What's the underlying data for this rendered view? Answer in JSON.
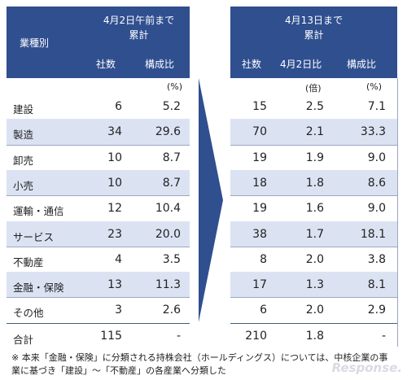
{
  "left": {
    "row_header": "業種別",
    "group_header": "4月2日午前まで\n累計",
    "col_count": "社数",
    "col_ratio": "構成比",
    "unit_ratio": "(%)"
  },
  "right": {
    "group_header": "4月13日まで\n累計",
    "col_count": "社数",
    "col_vs": "4月2日比",
    "col_ratio": "構成比",
    "unit_vs": "(倍)",
    "unit_ratio": "(%)"
  },
  "rows": [
    {
      "label": "建設",
      "l_count": "6",
      "l_ratio": "5.2",
      "r_count": "15",
      "r_vs": "2.5",
      "r_ratio": "7.1"
    },
    {
      "label": "製造",
      "l_count": "34",
      "l_ratio": "29.6",
      "r_count": "70",
      "r_vs": "2.1",
      "r_ratio": "33.3"
    },
    {
      "label": "卸売",
      "l_count": "10",
      "l_ratio": "8.7",
      "r_count": "19",
      "r_vs": "1.9",
      "r_ratio": "9.0"
    },
    {
      "label": "小売",
      "l_count": "10",
      "l_ratio": "8.7",
      "r_count": "18",
      "r_vs": "1.8",
      "r_ratio": "8.6"
    },
    {
      "label": "運輸・通信",
      "l_count": "12",
      "l_ratio": "10.4",
      "r_count": "19",
      "r_vs": "1.6",
      "r_ratio": "9.0"
    },
    {
      "label": "サービス",
      "l_count": "23",
      "l_ratio": "20.0",
      "r_count": "38",
      "r_vs": "1.7",
      "r_ratio": "18.1"
    },
    {
      "label": "不動産",
      "l_count": "4",
      "l_ratio": "3.5",
      "r_count": "8",
      "r_vs": "2.0",
      "r_ratio": "3.8"
    },
    {
      "label": "金融・保険",
      "l_count": "13",
      "l_ratio": "11.3",
      "r_count": "17",
      "r_vs": "1.3",
      "r_ratio": "8.1"
    },
    {
      "label": "その他",
      "l_count": "3",
      "l_ratio": "2.6",
      "r_count": "6",
      "r_vs": "2.0",
      "r_ratio": "2.9"
    }
  ],
  "total": {
    "label": "合計",
    "l_count": "115",
    "l_ratio": "-",
    "r_count": "210",
    "r_vs": "1.8",
    "r_ratio": "-"
  },
  "note": {
    "line1": "※ 本来「金融・保険」に分類される持株会社（ホールディングス）については、中核企業の事",
    "line2": "業に基づき「建設」～「不動産」の各産業へ分類した"
  },
  "colors": {
    "header": "#2f4f8f",
    "band": "#dbe3f3",
    "arrow": "#2f4f8f"
  },
  "logo_text": "Response."
}
